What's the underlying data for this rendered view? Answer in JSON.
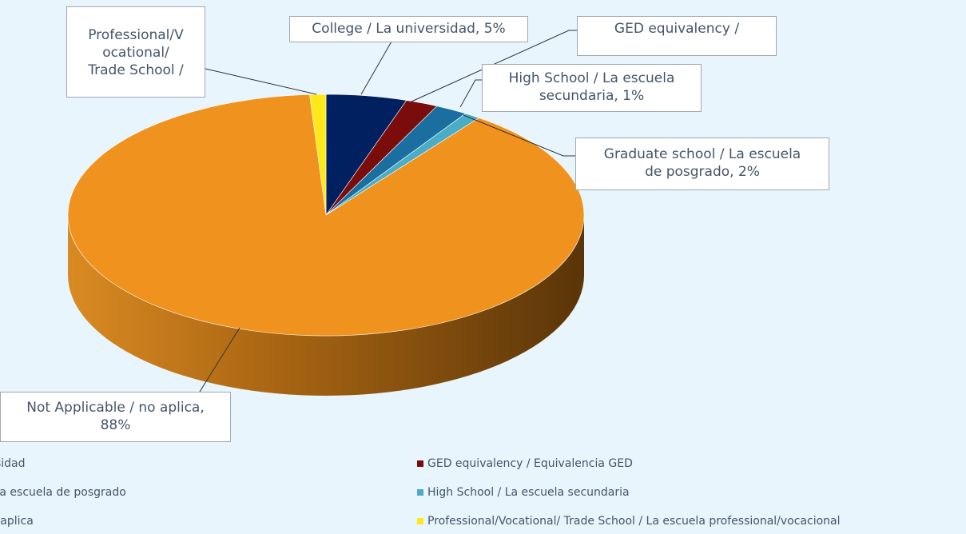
{
  "chart_data": {
    "type": "pie",
    "categories": [
      "College / La universidad",
      "GED equivalency / Equivalencia GED",
      "Graduate school / La escuela de posgrado",
      "High School / La escuela secundaria",
      "Not Applicable / no aplica",
      "Professional/Vocational/ Trade School / La escuela professional/vocacional"
    ],
    "values": [
      5,
      2,
      2,
      1,
      88,
      1
    ],
    "value_labels": [
      "College / La universidad, 5%",
      "GED equivalency /",
      "Graduate school / La escuela\nde posgrado, 2%",
      "High School / La escuela\nsecundaria, 1%",
      "Not Applicable / no aplica,\n88%",
      "Professional/V\nocational/\nTrade School /"
    ],
    "colors": [
      "#002060",
      "#7b0c0c",
      "#1b6fa0",
      "#4bacc6",
      "#f0921e",
      "#ffe81a"
    ],
    "legend": "bottom"
  }
}
